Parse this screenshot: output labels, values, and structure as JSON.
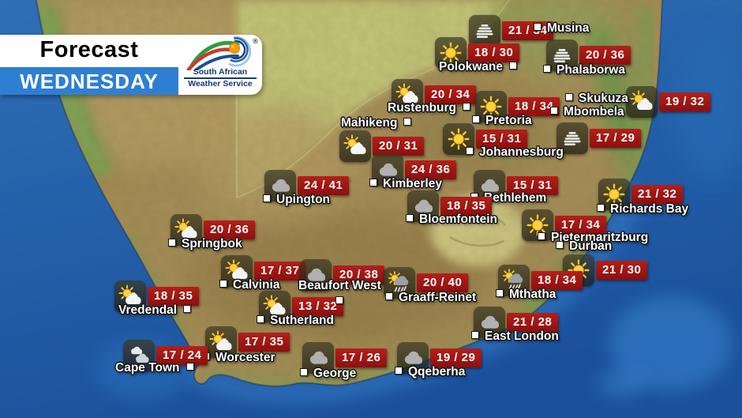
{
  "header": {
    "title": "Forecast",
    "day": "WEDNESDAY",
    "logo": {
      "line1": "South African",
      "line2": "Weather Service",
      "registered": "®"
    }
  },
  "colors": {
    "badge_bg": "#8e0f0e",
    "day_bar": "#2e7fd2",
    "ocean": "#1c54a0",
    "land_tan": "#a68d55",
    "label_text": "#ffffff"
  },
  "stations": [
    {
      "name": "Musina",
      "temp": "21 / 34",
      "icon": "fog-icon",
      "wx": [
        594,
        19
      ],
      "label": [
        676,
        27
      ],
      "marker": "left"
    },
    {
      "name": "Polokwane",
      "temp": "18 / 30",
      "icon": "sun-icon",
      "wx": [
        551,
        47
      ],
      "label": [
        556,
        76
      ],
      "marker": "right"
    },
    {
      "name": "Phalaborwa",
      "temp": "20 / 36",
      "icon": "fog-icon",
      "wx": [
        692,
        50
      ],
      "label": [
        688,
        80
      ],
      "marker": "left"
    },
    {
      "name": "Rustenburg",
      "temp": "20 / 34",
      "icon": "sun-cloud-icon",
      "wx": [
        496,
        100
      ],
      "label": [
        491,
        128
      ],
      "marker": "right"
    },
    {
      "name": "Skukuza",
      "temp": "19 / 32",
      "icon": "sun-cloud-icon",
      "wx": [
        793,
        109
      ],
      "label": [
        716,
        116
      ],
      "marker": "left"
    },
    {
      "name": "Pretoria",
      "temp": "18 / 34",
      "icon": "sun-icon",
      "wx": [
        602,
        115
      ],
      "label": [
        598,
        144
      ],
      "marker": "left"
    },
    {
      "name": "Mbombela",
      "temp": "17 / 29",
      "icon": "fog-icon",
      "wx": [
        705,
        155
      ],
      "label": [
        697,
        133
      ],
      "marker": "left"
    },
    {
      "name": "Mahikeng",
      "temp": "20 / 31",
      "icon": "sun-cloud-icon",
      "wx": [
        430,
        165
      ],
      "label": [
        432,
        147
      ],
      "marker": "right"
    },
    {
      "name": "Johannesburg",
      "temp": "15 / 31",
      "icon": "sun-icon",
      "wx": [
        561,
        156
      ],
      "label": [
        590,
        184
      ],
      "marker": "left"
    },
    {
      "name": "Kimberley",
      "temp": "24 / 36",
      "icon": "cloud-icon",
      "wx": [
        471,
        195
      ],
      "label": [
        468,
        224
      ],
      "marker": "left"
    },
    {
      "name": "Upington",
      "temp": "24 / 41",
      "icon": "cloud-icon",
      "wx": [
        335,
        215
      ],
      "label": [
        333,
        244
      ],
      "marker": "left"
    },
    {
      "name": "Bethlehem",
      "temp": "15 / 31",
      "icon": "cloud-icon",
      "wx": [
        600,
        215
      ],
      "label": [
        596,
        242
      ],
      "marker": "left"
    },
    {
      "name": "Bloemfontein",
      "temp": "18 / 35",
      "icon": "cloud-icon",
      "wx": [
        516,
        241
      ],
      "label": [
        514,
        269
      ],
      "marker": "left"
    },
    {
      "name": "Richards Bay",
      "temp": "21 / 32",
      "icon": "sun-icon",
      "wx": [
        758,
        226
      ],
      "label": [
        756,
        256
      ],
      "marker": "left"
    },
    {
      "name": "Pietermaritzburg",
      "temp": "17 / 34",
      "icon": "sun-icon",
      "wx": [
        661,
        265
      ],
      "label": [
        681,
        292
      ],
      "marker": "left"
    },
    {
      "name": "Durban",
      "temp": "21 / 30",
      "icon": "sun-icon",
      "wx": [
        713,
        322
      ],
      "label": [
        704,
        303
      ],
      "marker": "left"
    },
    {
      "name": "Springbok",
      "temp": "20 / 36",
      "icon": "sun-cloud-icon",
      "wx": [
        216,
        271
      ],
      "label": [
        213,
        300
      ],
      "marker": "left"
    },
    {
      "name": "Vredendal",
      "temp": "18 / 35",
      "icon": "sun-cloud-icon",
      "wx": [
        145,
        355
      ],
      "label": [
        150,
        384
      ],
      "marker": "right"
    },
    {
      "name": "Calvinia",
      "temp": "17 / 37",
      "icon": "sun-cloud-icon",
      "wx": [
        280,
        323
      ],
      "label": [
        278,
        352
      ],
      "marker": "left"
    },
    {
      "name": "Sutherland",
      "temp": "13 / 32",
      "icon": "sun-cloud-icon",
      "wx": [
        328,
        368
      ],
      "label": [
        325,
        397
      ],
      "marker": "left"
    },
    {
      "name": "Beaufort West",
      "temp": "20 / 38",
      "icon": "cloud-icon",
      "wx": [
        380,
        328
      ],
      "label": [
        378,
        353
      ],
      "marker": "below"
    },
    {
      "name": "Graaff-Reinet",
      "temp": "20 / 40",
      "icon": "sun-rain-icon",
      "wx": [
        486,
        338
      ],
      "label": [
        488,
        368
      ],
      "marker": "left"
    },
    {
      "name": "Mthatha",
      "temp": "18 / 34",
      "icon": "sun-rain-icon",
      "wx": [
        631,
        335
      ],
      "label": [
        628,
        364
      ],
      "marker": "left"
    },
    {
      "name": "East London",
      "temp": "21 / 28",
      "icon": "cloud-icon",
      "wx": [
        600,
        388
      ],
      "label": [
        597,
        417
      ],
      "marker": "left"
    },
    {
      "name": "Worcester",
      "temp": "17 / 35",
      "icon": "sun-cloud-icon",
      "wx": [
        260,
        413
      ],
      "label": [
        256,
        444
      ],
      "marker": "left"
    },
    {
      "name": "Cape Town",
      "temp": "17 / 24",
      "icon": "clouds-icon",
      "wx": [
        156,
        430
      ],
      "label": [
        146,
        457
      ],
      "marker": "right"
    },
    {
      "name": "George",
      "temp": "17 / 26",
      "icon": "cloud-icon",
      "wx": [
        383,
        433
      ],
      "label": [
        380,
        464
      ],
      "marker": "left"
    },
    {
      "name": "Qqeberha",
      "temp": "19 / 29",
      "icon": "cloud-icon",
      "wx": [
        503,
        433
      ],
      "label": [
        500,
        462
      ],
      "marker": "left"
    }
  ]
}
